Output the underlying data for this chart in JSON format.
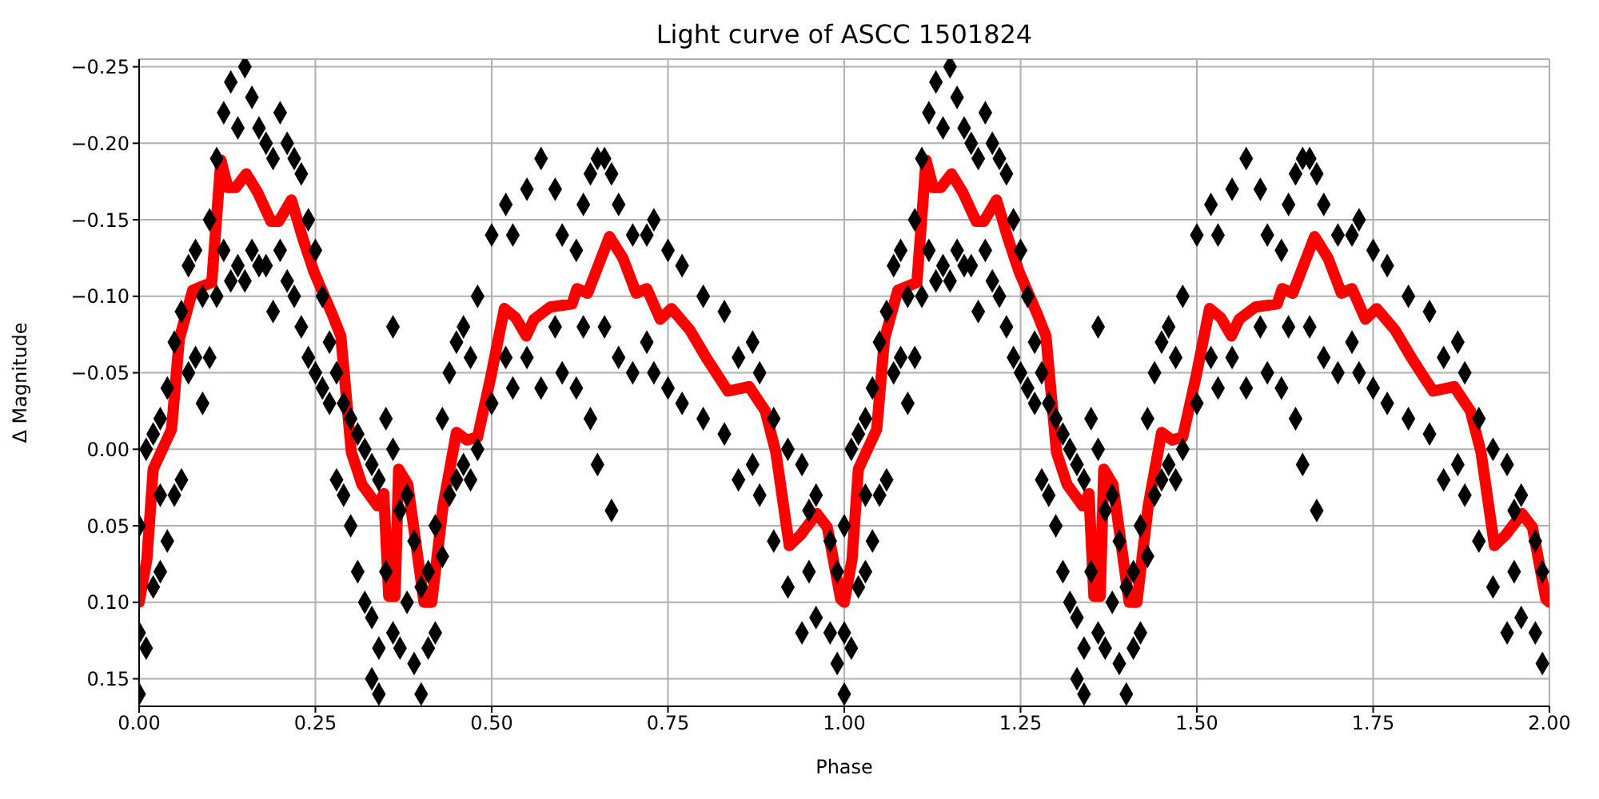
{
  "chart_data": {
    "type": "scatter",
    "title": "Light curve of ASCC 1501824",
    "xlabel": "Phase",
    "ylabel": "Δ Magnitude",
    "xlim": [
      0,
      2
    ],
    "xticks": [
      {
        "value": 0,
        "label": "0.00"
      },
      {
        "value": 0.25,
        "label": "0.25"
      },
      {
        "value": 0.5,
        "label": "0.50"
      },
      {
        "value": 0.75,
        "label": "0.75"
      },
      {
        "value": 1,
        "label": "1.00"
      },
      {
        "value": 1.25,
        "label": "1.25"
      },
      {
        "value": 1.5,
        "label": "1.50"
      },
      {
        "value": 1.75,
        "label": "1.75"
      },
      {
        "value": 2,
        "label": "2.00"
      }
    ],
    "ylim": [
      0.168,
      -0.255
    ],
    "yticks": [
      {
        "value": -0.25,
        "label": "−0.25"
      },
      {
        "value": -0.2,
        "label": "−0.20"
      },
      {
        "value": -0.15,
        "label": "−0.15"
      },
      {
        "value": -0.1,
        "label": "−0.10"
      },
      {
        "value": -0.05,
        "label": "−0.05"
      },
      {
        "value": 0,
        "label": "0.00"
      },
      {
        "value": 0.05,
        "label": "0.05"
      },
      {
        "value": 0.1,
        "label": "0.10"
      },
      {
        "value": 0.15,
        "label": "0.15"
      }
    ],
    "grid": true,
    "series": [
      {
        "marker": "diamond",
        "color": "#000000",
        "x": [
          0,
          0,
          0,
          0.01,
          0.01,
          0.02,
          0.02,
          0.03,
          0.03,
          0.03,
          0.04,
          0.04,
          0.05,
          0.05,
          0.06,
          0.06,
          0.07,
          0.07,
          0.08,
          0.08,
          0.09,
          0.09,
          0.1,
          0.1,
          0.11,
          0.11,
          0.12,
          0.12,
          0.13,
          0.13,
          0.14,
          0.14,
          0.15,
          0.15,
          0.16,
          0.16,
          0.17,
          0.17,
          0.18,
          0.18,
          0.19,
          0.19,
          0.2,
          0.2,
          0.21,
          0.21,
          0.22,
          0.22,
          0.23,
          0.23,
          0.24,
          0.24,
          0.25,
          0.25,
          0.26,
          0.26,
          0.27,
          0.27,
          0.28,
          0.28,
          0.29,
          0.29,
          0.3,
          0.3,
          0.31,
          0.31,
          0.32,
          0.32,
          0.33,
          0.33,
          0.33,
          0.34,
          0.34,
          0.34,
          0.35,
          0.35,
          0.36,
          0.36,
          0.36,
          0.37,
          0.37,
          0.38,
          0.38,
          0.39,
          0.39,
          0.4,
          0.4,
          0.41,
          0.41,
          0.42,
          0.42,
          0.43,
          0.43,
          0.44,
          0.44,
          0.45,
          0.45,
          0.46,
          0.46,
          0.47,
          0.47,
          0.48,
          0.48,
          0.5,
          0.5,
          0.52,
          0.52,
          0.53,
          0.53,
          0.55,
          0.55,
          0.57,
          0.57,
          0.59,
          0.59,
          0.6,
          0.6,
          0.62,
          0.62,
          0.63,
          0.63,
          0.64,
          0.64,
          0.65,
          0.65,
          0.66,
          0.66,
          0.67,
          0.67,
          0.68,
          0.68,
          0.7,
          0.7,
          0.72,
          0.72,
          0.73,
          0.73,
          0.75,
          0.75,
          0.77,
          0.77,
          0.8,
          0.8,
          0.83,
          0.83,
          0.85,
          0.85,
          0.87,
          0.87,
          0.88,
          0.88,
          0.9,
          0.9,
          0.92,
          0.92,
          0.94,
          0.94,
          0.95,
          0.95,
          0.96,
          0.96,
          0.98,
          0.98,
          0.99,
          0.99,
          1,
          1,
          1,
          1.01,
          1.01,
          1.02,
          1.02,
          1.03,
          1.03,
          1.03,
          1.04,
          1.04,
          1.05,
          1.05,
          1.06,
          1.06,
          1.07,
          1.07,
          1.08,
          1.08,
          1.09,
          1.09,
          1.1,
          1.1,
          1.11,
          1.11,
          1.12,
          1.12,
          1.13,
          1.13,
          1.14,
          1.14,
          1.15,
          1.15,
          1.16,
          1.16,
          1.17,
          1.17,
          1.18,
          1.18,
          1.19,
          1.19,
          1.2,
          1.2,
          1.21,
          1.21,
          1.22,
          1.22,
          1.23,
          1.23,
          1.24,
          1.24,
          1.25,
          1.25,
          1.26,
          1.26,
          1.27,
          1.27,
          1.28,
          1.28,
          1.29,
          1.29,
          1.3,
          1.3,
          1.31,
          1.31,
          1.32,
          1.32,
          1.33,
          1.33,
          1.33,
          1.34,
          1.34,
          1.34,
          1.35,
          1.35,
          1.36,
          1.36,
          1.36,
          1.37,
          1.37,
          1.38,
          1.38,
          1.39,
          1.39,
          1.4,
          1.4,
          1.41,
          1.41,
          1.42,
          1.42,
          1.43,
          1.43,
          1.44,
          1.44,
          1.45,
          1.45,
          1.46,
          1.46,
          1.47,
          1.47,
          1.48,
          1.48,
          1.5,
          1.5,
          1.52,
          1.52,
          1.53,
          1.53,
          1.55,
          1.55,
          1.57,
          1.57,
          1.59,
          1.59,
          1.6,
          1.6,
          1.62,
          1.62,
          1.63,
          1.63,
          1.64,
          1.64,
          1.65,
          1.65,
          1.66,
          1.66,
          1.67,
          1.67,
          1.68,
          1.68,
          1.7,
          1.7,
          1.72,
          1.72,
          1.73,
          1.73,
          1.75,
          1.75,
          1.77,
          1.77,
          1.8,
          1.8,
          1.83,
          1.83,
          1.85,
          1.85,
          1.87,
          1.87,
          1.88,
          1.88,
          1.9,
          1.9,
          1.92,
          1.92,
          1.94,
          1.94,
          1.95,
          1.95,
          1.96,
          1.96,
          1.98,
          1.98,
          1.99,
          1.99
        ],
        "values": [
          0.16,
          0.12,
          0.05,
          0.13,
          0,
          0.09,
          -0.01,
          0.08,
          0.03,
          -0.02,
          -0.04,
          0.06,
          -0.07,
          0.03,
          -0.09,
          0.02,
          -0.12,
          -0.05,
          -0.13,
          -0.06,
          -0.1,
          -0.03,
          -0.15,
          -0.06,
          -0.19,
          -0.1,
          -0.22,
          -0.13,
          -0.24,
          -0.11,
          -0.21,
          -0.12,
          -0.25,
          -0.11,
          -0.23,
          -0.13,
          -0.21,
          -0.12,
          -0.2,
          -0.12,
          -0.19,
          -0.09,
          -0.22,
          -0.13,
          -0.2,
          -0.11,
          -0.19,
          -0.1,
          -0.18,
          -0.08,
          -0.15,
          -0.06,
          -0.13,
          -0.05,
          -0.1,
          -0.04,
          -0.07,
          -0.03,
          -0.05,
          0.02,
          -0.03,
          0.03,
          -0.02,
          0.05,
          -0.01,
          0.08,
          0,
          0.1,
          0.01,
          0.11,
          0.15,
          0.02,
          0.13,
          0.16,
          -0.02,
          0.08,
          0,
          0.12,
          -0.08,
          0.04,
          0.13,
          0.03,
          0.1,
          0.06,
          0.14,
          0.09,
          0.16,
          0.08,
          0.13,
          0.05,
          0.12,
          -0.02,
          0.07,
          -0.05,
          0.03,
          -0.07,
          0.02,
          -0.08,
          0.01,
          -0.06,
          0.02,
          -0.1,
          0,
          -0.14,
          -0.03,
          -0.16,
          -0.06,
          -0.14,
          -0.04,
          -0.17,
          -0.06,
          -0.19,
          -0.04,
          -0.17,
          -0.08,
          -0.14,
          -0.05,
          -0.13,
          -0.04,
          -0.16,
          -0.08,
          -0.18,
          -0.02,
          -0.19,
          0.01,
          -0.19,
          -0.08,
          -0.18,
          0.04,
          -0.16,
          -0.06,
          -0.14,
          -0.05,
          -0.14,
          -0.07,
          -0.15,
          -0.05,
          -0.13,
          -0.04,
          -0.12,
          -0.03,
          -0.1,
          -0.02,
          -0.09,
          -0.01,
          -0.06,
          0.02,
          -0.07,
          0.01,
          -0.05,
          0.03,
          -0.02,
          0.06,
          0,
          0.09,
          0.01,
          0.12,
          0.04,
          0.08,
          0.03,
          0.11,
          0.06,
          0.12,
          0.08,
          0.14,
          0.16,
          0.12,
          0.05,
          0.13,
          0,
          0.09,
          -0.01,
          0.08,
          0.03,
          -0.02,
          -0.04,
          0.06,
          -0.07,
          0.03,
          -0.09,
          0.02,
          -0.12,
          -0.05,
          -0.13,
          -0.06,
          -0.1,
          -0.03,
          -0.15,
          -0.06,
          -0.19,
          -0.1,
          -0.22,
          -0.13,
          -0.24,
          -0.11,
          -0.21,
          -0.12,
          -0.25,
          -0.11,
          -0.23,
          -0.13,
          -0.21,
          -0.12,
          -0.2,
          -0.12,
          -0.19,
          -0.09,
          -0.22,
          -0.13,
          -0.2,
          -0.11,
          -0.19,
          -0.1,
          -0.18,
          -0.08,
          -0.15,
          -0.06,
          -0.13,
          -0.05,
          -0.1,
          -0.04,
          -0.07,
          -0.03,
          -0.05,
          0.02,
          -0.03,
          0.03,
          -0.02,
          0.05,
          -0.01,
          0.08,
          0,
          0.1,
          0.01,
          0.11,
          0.15,
          0.02,
          0.13,
          0.16,
          -0.02,
          0.08,
          0,
          0.12,
          -0.08,
          0.04,
          0.13,
          0.03,
          0.1,
          0.06,
          0.14,
          0.09,
          0.16,
          0.08,
          0.13,
          0.05,
          0.12,
          -0.02,
          0.07,
          -0.05,
          0.03,
          -0.07,
          0.02,
          -0.08,
          0.01,
          -0.06,
          0.02,
          -0.1,
          0,
          -0.14,
          -0.03,
          -0.16,
          -0.06,
          -0.14,
          -0.04,
          -0.17,
          -0.06,
          -0.19,
          -0.04,
          -0.17,
          -0.08,
          -0.14,
          -0.05,
          -0.13,
          -0.04,
          -0.16,
          -0.08,
          -0.18,
          -0.02,
          -0.19,
          0.01,
          -0.19,
          -0.08,
          -0.18,
          0.04,
          -0.16,
          -0.06,
          -0.14,
          -0.05,
          -0.14,
          -0.07,
          -0.15,
          -0.05,
          -0.13,
          -0.04,
          -0.12,
          -0.03,
          -0.1,
          -0.02,
          -0.09,
          -0.01,
          -0.06,
          0.02,
          -0.07,
          0.01,
          -0.05,
          0.03,
          -0.02,
          0.06,
          0,
          0.09,
          0.01,
          0.12,
          0.04,
          0.08,
          0.03,
          0.11,
          0.06,
          0.12,
          0.08,
          0.14
        ]
      },
      {
        "type": "line",
        "color": "#ff0000",
        "x": [
          0,
          0.011,
          0.02,
          0.046,
          0.057,
          0.076,
          0.103,
          0.116,
          0.126,
          0.137,
          0.152,
          0.168,
          0.187,
          0.198,
          0.216,
          0.232,
          0.248,
          0.274,
          0.286,
          0.301,
          0.316,
          0.338,
          0.347,
          0.354,
          0.363,
          0.368,
          0.381,
          0.404,
          0.415,
          0.431,
          0.45,
          0.465,
          0.48,
          0.499,
          0.518,
          0.534,
          0.549,
          0.56,
          0.583,
          0.614,
          0.621,
          0.636,
          0.667,
          0.686,
          0.705,
          0.72,
          0.739,
          0.755,
          0.781,
          0.804,
          0.835,
          0.865,
          0.888,
          0.903,
          0.922,
          0.938,
          0.961,
          0.976,
          0.995,
          1,
          1.011,
          1.02,
          1.046,
          1.057,
          1.076,
          1.103,
          1.116,
          1.126,
          1.137,
          1.152,
          1.168,
          1.187,
          1.198,
          1.216,
          1.232,
          1.248,
          1.274,
          1.286,
          1.301,
          1.316,
          1.338,
          1.347,
          1.354,
          1.363,
          1.368,
          1.381,
          1.404,
          1.415,
          1.431,
          1.45,
          1.465,
          1.48,
          1.499,
          1.518,
          1.534,
          1.549,
          1.56,
          1.583,
          1.614,
          1.621,
          1.636,
          1.667,
          1.686,
          1.705,
          1.72,
          1.739,
          1.755,
          1.781,
          1.804,
          1.835,
          1.865,
          1.888,
          1.903,
          1.922,
          1.938,
          1.961,
          1.976,
          1.995,
          2
        ],
        "values": [
          0.1,
          0.072,
          0.013,
          -0.013,
          -0.072,
          -0.104,
          -0.109,
          -0.189,
          -0.171,
          -0.171,
          -0.18,
          -0.168,
          -0.149,
          -0.149,
          -0.163,
          -0.138,
          -0.116,
          -0.088,
          -0.074,
          0.002,
          0.023,
          0.037,
          0.029,
          0.096,
          0.096,
          0.013,
          0.023,
          0.1,
          0.1,
          0.037,
          -0.011,
          -0.006,
          -0.008,
          -0.048,
          -0.092,
          -0.086,
          -0.074,
          -0.085,
          -0.093,
          -0.095,
          -0.105,
          -0.102,
          -0.139,
          -0.125,
          -0.102,
          -0.105,
          -0.085,
          -0.092,
          -0.078,
          -0.06,
          -0.038,
          -0.041,
          -0.025,
          0.002,
          0.063,
          0.056,
          0.042,
          0.051,
          0.098,
          0.1,
          0.072,
          0.013,
          -0.013,
          -0.072,
          -0.104,
          -0.109,
          -0.189,
          -0.171,
          -0.171,
          -0.18,
          -0.168,
          -0.149,
          -0.149,
          -0.163,
          -0.138,
          -0.116,
          -0.088,
          -0.074,
          0.002,
          0.023,
          0.037,
          0.029,
          0.096,
          0.096,
          0.013,
          0.023,
          0.1,
          0.1,
          0.037,
          -0.011,
          -0.006,
          -0.008,
          -0.048,
          -0.092,
          -0.086,
          -0.074,
          -0.085,
          -0.093,
          -0.095,
          -0.105,
          -0.102,
          -0.139,
          -0.125,
          -0.102,
          -0.105,
          -0.085,
          -0.092,
          -0.078,
          -0.06,
          -0.038,
          -0.041,
          -0.025,
          0.002,
          0.063,
          0.056,
          0.042,
          0.051,
          0.098,
          0.1
        ]
      }
    ]
  }
}
